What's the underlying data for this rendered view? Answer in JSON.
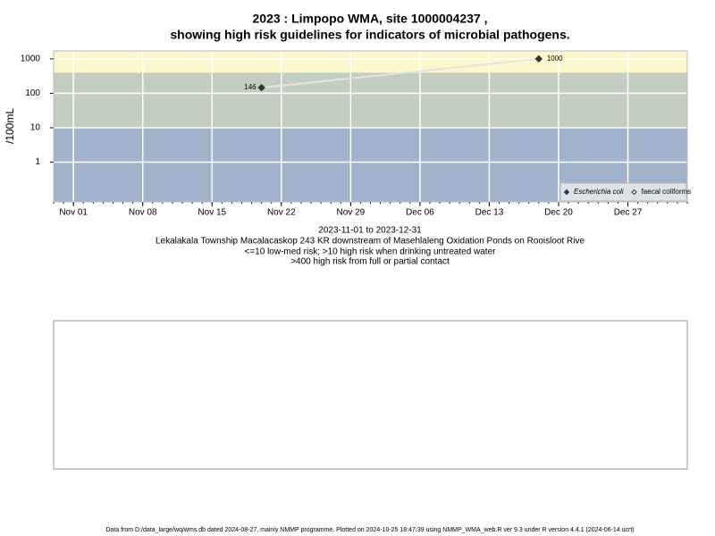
{
  "chart_data": {
    "type": "line",
    "title": [
      "2023 : Limpopo WMA, site 1000004237 ,",
      "showing high risk guidelines for indicators of microbial pathogens."
    ],
    "y_label": "/100mL",
    "x": [
      "2023-11-20",
      "2023-12-18"
    ],
    "series": [
      {
        "name": "Escherichia coli",
        "color": "#333333",
        "line_color": "#e4e4e4",
        "values": [
          146,
          1000
        ]
      },
      {
        "name": "faecal coliforms",
        "color": "#ffffff",
        "values": [
          null,
          null
        ]
      }
    ],
    "xlim": [
      "2023-10-30",
      "2024-01-02"
    ],
    "xticks": [
      {
        "value": "2023-11-01",
        "label": "Nov 01"
      },
      {
        "value": "2023-11-08",
        "label": "Nov 08"
      },
      {
        "value": "2023-11-15",
        "label": "Nov 15"
      },
      {
        "value": "2023-11-22",
        "label": "Nov 22"
      },
      {
        "value": "2023-11-29",
        "label": "Nov 29"
      },
      {
        "value": "2023-12-06",
        "label": "Dec 06"
      },
      {
        "value": "2023-12-13",
        "label": "Dec 13"
      },
      {
        "value": "2023-12-20",
        "label": "Dec 20"
      },
      {
        "value": "2023-12-27",
        "label": "Dec 27"
      }
    ],
    "ylim": [
      0.07,
      1700
    ],
    "yticks": [
      1,
      10,
      100,
      1000
    ],
    "log_y": true,
    "grid": true,
    "bands": [
      {
        "to": 10,
        "color": "#a1b2cb"
      },
      {
        "from": 10,
        "to": 400,
        "color": "#c5cdc0"
      },
      {
        "from": 400,
        "color": "#fdf7cd"
      }
    ],
    "legend": "bottom-right",
    "notes": [
      "2023-11-01 to 2023-12-31",
      "Lekalakala Township Macalacaskop 243 KR downstream of Masehlaleng Oxidation Ponds on Rooisloot Rive",
      "<=10 low-med risk; >10 high risk when drinking untreated water",
      ">400 high risk from full or partial contact"
    ],
    "footer": "Data from D:/data_large/wq/wms.db dated 2024-08-27, mainly NMMP programme. Plotted on 2024-10-25 18:47:39 using NMMP_WMA_web.R ver 9.3 under R version 4.4.1 (2024-06-14 ucrt)"
  }
}
